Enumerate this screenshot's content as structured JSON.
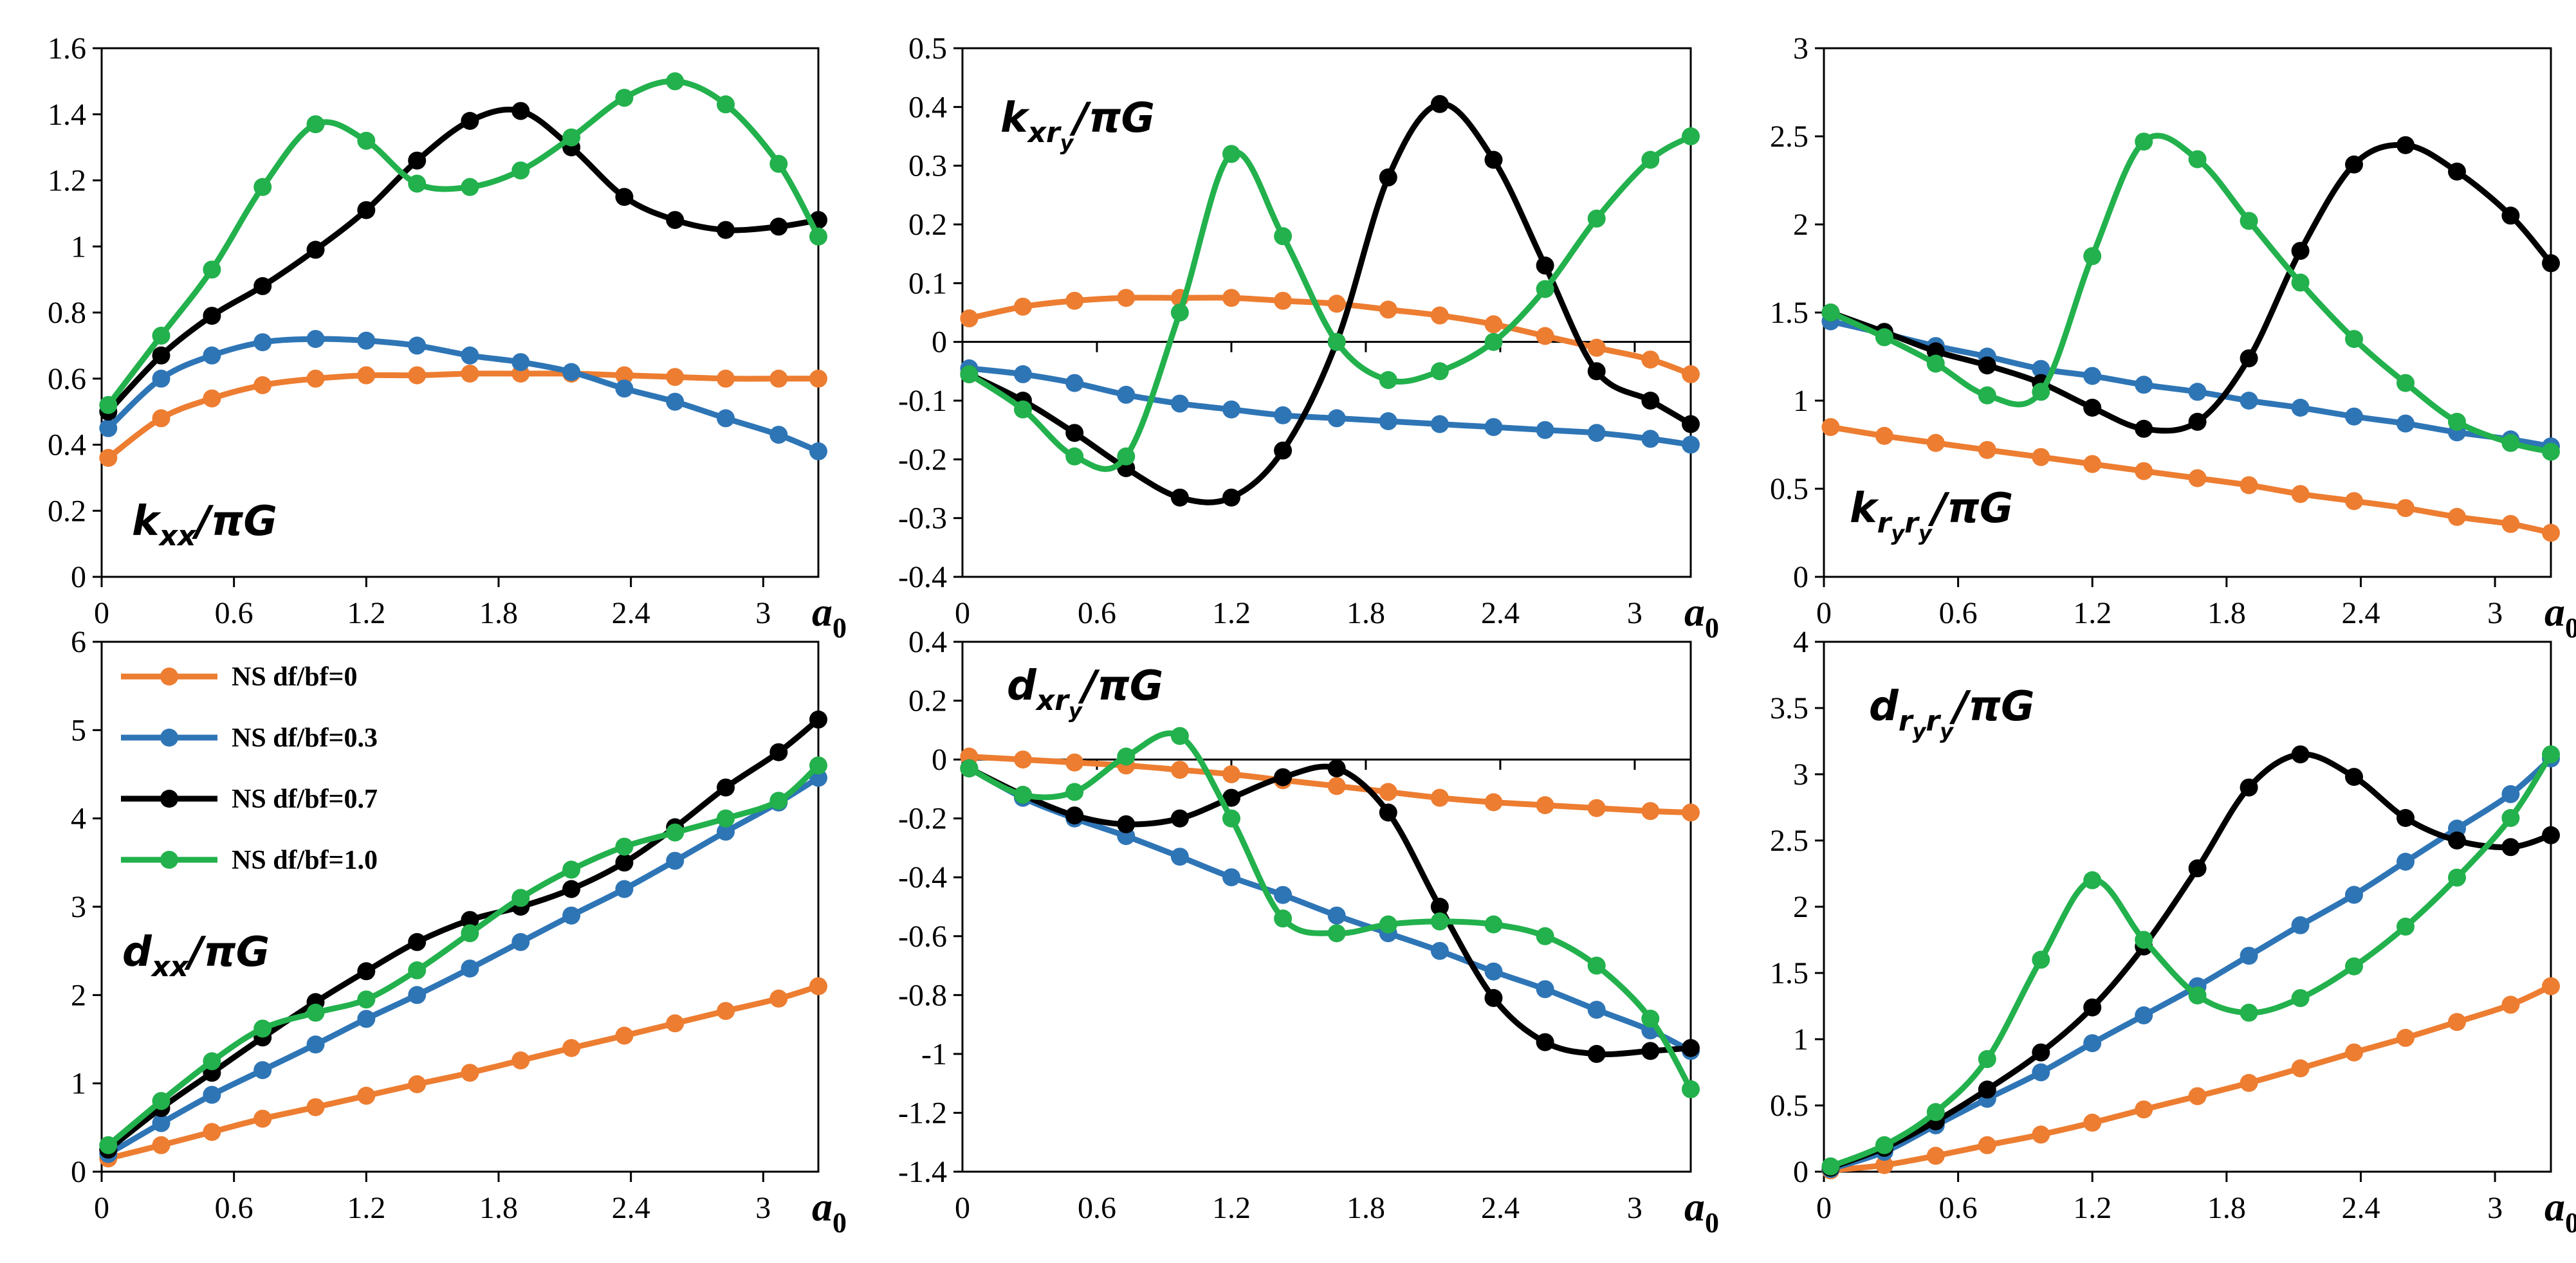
{
  "colors": {
    "NS df/bf=0": "#ED7D31",
    "NS df/bf=0.3": "#2E75B6",
    "NS df/bf=0.7": "#000000",
    "NS df/bf=1.0": "#22B14C"
  },
  "legend": [
    {
      "name": "NS df/bf=0",
      "color_key": "NS df/bf=0"
    },
    {
      "name": "NS df/bf=0.3",
      "color_key": "NS df/bf=0.3"
    },
    {
      "name": "NS df/bf=0.7",
      "color_key": "NS df/bf=0.7"
    },
    {
      "name": "NS df/bf=1.0",
      "color_key": "NS df/bf=1.0"
    }
  ],
  "chart_data": [
    {
      "type": "line",
      "label": {
        "parts": [
          {
            "t": "k",
            "s": 0
          },
          {
            "t": "xx",
            "s": 1
          },
          {
            "t": "/πG",
            "s": 0
          }
        ]
      },
      "xlabel": {
        "main": "a",
        "sub": "0"
      },
      "xlim": [
        0,
        3.25
      ],
      "ylim": [
        0,
        1.6
      ],
      "xticks": [
        0,
        0.6,
        1.2,
        1.8,
        2.4,
        3
      ],
      "xtick_labels": [
        "0",
        "0.6",
        "1.2",
        "1.8",
        "2.4",
        "3"
      ],
      "yticks": [
        0,
        0.2,
        0.4,
        0.6,
        0.8,
        1,
        1.2,
        1.4,
        1.6
      ],
      "ytick_labels": [
        "0",
        "0.2",
        "0.4",
        "0.6",
        "0.8",
        "1",
        "1.2",
        "1.4",
        "1.6"
      ],
      "x": [
        0.03,
        0.27,
        0.5,
        0.73,
        0.97,
        1.2,
        1.43,
        1.67,
        1.9,
        2.13,
        2.37,
        2.6,
        2.83,
        3.07,
        3.25
      ],
      "series": [
        {
          "name": "NS df/bf=0",
          "values": [
            0.36,
            0.48,
            0.54,
            0.58,
            0.6,
            0.61,
            0.61,
            0.615,
            0.615,
            0.615,
            0.61,
            0.605,
            0.6,
            0.6,
            0.6
          ]
        },
        {
          "name": "NS df/bf=0.3",
          "values": [
            0.45,
            0.6,
            0.67,
            0.71,
            0.72,
            0.715,
            0.7,
            0.67,
            0.65,
            0.62,
            0.57,
            0.53,
            0.48,
            0.43,
            0.38
          ]
        },
        {
          "name": "NS df/bf=0.7",
          "values": [
            0.5,
            0.67,
            0.79,
            0.88,
            0.99,
            1.11,
            1.26,
            1.38,
            1.41,
            1.3,
            1.15,
            1.08,
            1.05,
            1.06,
            1.08
          ]
        },
        {
          "name": "NS df/bf=1.0",
          "values": [
            0.52,
            0.73,
            0.93,
            1.18,
            1.37,
            1.32,
            1.19,
            1.18,
            1.23,
            1.33,
            1.45,
            1.5,
            1.43,
            1.25,
            1.03
          ]
        }
      ]
    },
    {
      "type": "line",
      "label": {
        "parts": [
          {
            "t": "k",
            "s": 0
          },
          {
            "t": "xr",
            "s": 1
          },
          {
            "t": "y",
            "s": 2
          },
          {
            "t": "/πG",
            "s": 0
          }
        ]
      },
      "xlabel": {
        "main": "a",
        "sub": "0"
      },
      "xlim": [
        0,
        3.25
      ],
      "ylim": [
        -0.4,
        0.5
      ],
      "xticks": [
        0,
        0.6,
        1.2,
        1.8,
        2.4,
        3
      ],
      "xtick_labels": [
        "0",
        "0.6",
        "1.2",
        "1.8",
        "2.4",
        "3"
      ],
      "yticks": [
        -0.4,
        -0.3,
        -0.2,
        -0.1,
        0,
        0.1,
        0.2,
        0.3,
        0.4,
        0.5
      ],
      "ytick_labels": [
        "-0.4",
        "-0.3",
        "-0.2",
        "-0.1",
        "0",
        "0.1",
        "0.2",
        "0.3",
        "0.4",
        "0.5"
      ],
      "x": [
        0.03,
        0.27,
        0.5,
        0.73,
        0.97,
        1.2,
        1.43,
        1.67,
        1.9,
        2.13,
        2.37,
        2.6,
        2.83,
        3.07,
        3.25
      ],
      "series": [
        {
          "name": "NS df/bf=0",
          "values": [
            0.04,
            0.06,
            0.07,
            0.075,
            0.075,
            0.075,
            0.07,
            0.065,
            0.055,
            0.045,
            0.03,
            0.01,
            -0.01,
            -0.03,
            -0.055
          ]
        },
        {
          "name": "NS df/bf=0.3",
          "values": [
            -0.045,
            -0.055,
            -0.07,
            -0.09,
            -0.105,
            -0.115,
            -0.125,
            -0.13,
            -0.135,
            -0.14,
            -0.145,
            -0.15,
            -0.155,
            -0.165,
            -0.175
          ]
        },
        {
          "name": "NS df/bf=0.7",
          "values": [
            -0.055,
            -0.1,
            -0.155,
            -0.215,
            -0.265,
            -0.265,
            -0.185,
            0.0,
            0.28,
            0.405,
            0.31,
            0.13,
            -0.05,
            -0.1,
            -0.14
          ]
        },
        {
          "name": "NS df/bf=1.0",
          "values": [
            -0.055,
            -0.115,
            -0.195,
            -0.195,
            0.05,
            0.32,
            0.18,
            0.0,
            -0.065,
            -0.05,
            0.0,
            0.09,
            0.21,
            0.31,
            0.35
          ]
        }
      ]
    },
    {
      "type": "line",
      "label": {
        "parts": [
          {
            "t": "k",
            "s": 0
          },
          {
            "t": "r",
            "s": 1
          },
          {
            "t": "y",
            "s": 2
          },
          {
            "t": "r",
            "s": 1
          },
          {
            "t": "y",
            "s": 2
          },
          {
            "t": "/πG",
            "s": 0
          }
        ]
      },
      "xlabel": {
        "main": "a",
        "sub": "0"
      },
      "xlim": [
        0,
        3.25
      ],
      "ylim": [
        0,
        3
      ],
      "xticks": [
        0,
        0.6,
        1.2,
        1.8,
        2.4,
        3
      ],
      "xtick_labels": [
        "0",
        "0.6",
        "1.2",
        "1.8",
        "2.4",
        "3"
      ],
      "yticks": [
        0,
        0.5,
        1,
        1.5,
        2,
        2.5,
        3
      ],
      "ytick_labels": [
        "0",
        "0.5",
        "1",
        "1.5",
        "2",
        "2.5",
        "3"
      ],
      "x": [
        0.03,
        0.27,
        0.5,
        0.73,
        0.97,
        1.2,
        1.43,
        1.67,
        1.9,
        2.13,
        2.37,
        2.6,
        2.83,
        3.07,
        3.25
      ],
      "series": [
        {
          "name": "NS df/bf=0",
          "values": [
            0.85,
            0.8,
            0.76,
            0.72,
            0.68,
            0.64,
            0.6,
            0.56,
            0.52,
            0.47,
            0.43,
            0.39,
            0.34,
            0.3,
            0.25
          ]
        },
        {
          "name": "NS df/bf=0.3",
          "values": [
            1.45,
            1.38,
            1.31,
            1.25,
            1.18,
            1.14,
            1.09,
            1.05,
            1.0,
            0.96,
            0.91,
            0.87,
            0.82,
            0.78,
            0.74
          ]
        },
        {
          "name": "NS df/bf=0.7",
          "values": [
            1.5,
            1.39,
            1.28,
            1.2,
            1.1,
            0.96,
            0.84,
            0.88,
            1.24,
            1.85,
            2.34,
            2.45,
            2.3,
            2.05,
            1.78
          ]
        },
        {
          "name": "NS df/bf=1.0",
          "values": [
            1.5,
            1.36,
            1.21,
            1.03,
            1.05,
            1.82,
            2.47,
            2.37,
            2.02,
            1.67,
            1.35,
            1.1,
            0.88,
            0.76,
            0.71
          ]
        }
      ]
    },
    {
      "type": "line",
      "label": {
        "parts": [
          {
            "t": "d",
            "s": 0
          },
          {
            "t": "xx",
            "s": 1
          },
          {
            "t": "/πG",
            "s": 0
          }
        ]
      },
      "xlabel": {
        "main": "a",
        "sub": "0"
      },
      "xlim": [
        0,
        3.25
      ],
      "ylim": [
        0,
        6
      ],
      "xticks": [
        0,
        0.6,
        1.2,
        1.8,
        2.4,
        3
      ],
      "xtick_labels": [
        "0",
        "0.6",
        "1.2",
        "1.8",
        "2.4",
        "3"
      ],
      "yticks": [
        0,
        1,
        2,
        3,
        4,
        5,
        6
      ],
      "ytick_labels": [
        "0",
        "1",
        "2",
        "3",
        "4",
        "5",
        "6"
      ],
      "x": [
        0.03,
        0.27,
        0.5,
        0.73,
        0.97,
        1.2,
        1.43,
        1.67,
        1.9,
        2.13,
        2.37,
        2.6,
        2.83,
        3.07,
        3.25
      ],
      "series": [
        {
          "name": "NS df/bf=0",
          "values": [
            0.15,
            0.3,
            0.45,
            0.6,
            0.73,
            0.86,
            0.99,
            1.12,
            1.26,
            1.4,
            1.54,
            1.68,
            1.82,
            1.96,
            2.1
          ]
        },
        {
          "name": "NS df/bf=0.3",
          "values": [
            0.2,
            0.55,
            0.87,
            1.15,
            1.44,
            1.73,
            2.0,
            2.3,
            2.6,
            2.9,
            3.2,
            3.52,
            3.85,
            4.18,
            4.46
          ]
        },
        {
          "name": "NS df/bf=0.7",
          "values": [
            0.25,
            0.72,
            1.12,
            1.52,
            1.92,
            2.27,
            2.6,
            2.85,
            3.0,
            3.2,
            3.5,
            3.9,
            4.35,
            4.75,
            5.12
          ]
        },
        {
          "name": "NS df/bf=1.0",
          "values": [
            0.3,
            0.8,
            1.25,
            1.62,
            1.8,
            1.95,
            2.28,
            2.7,
            3.1,
            3.42,
            3.68,
            3.84,
            4.0,
            4.2,
            4.6
          ]
        }
      ]
    },
    {
      "type": "line",
      "label": {
        "parts": [
          {
            "t": "d",
            "s": 0
          },
          {
            "t": "xr",
            "s": 1
          },
          {
            "t": "y",
            "s": 2
          },
          {
            "t": "/πG",
            "s": 0
          }
        ]
      },
      "xlabel": {
        "main": "a",
        "sub": "0"
      },
      "xlim": [
        0,
        3.25
      ],
      "ylim": [
        -1.4,
        0.4
      ],
      "xticks": [
        0,
        0.6,
        1.2,
        1.8,
        2.4,
        3
      ],
      "xtick_labels": [
        "0",
        "0.6",
        "1.2",
        "1.8",
        "2.4",
        "3"
      ],
      "yticks": [
        -1.4,
        -1.2,
        -1,
        -0.8,
        -0.6,
        -0.4,
        -0.2,
        0,
        0.2,
        0.4
      ],
      "ytick_labels": [
        "-1.4",
        "-1.2",
        "-1",
        "-0.8",
        "-0.6",
        "-0.4",
        "-0.2",
        "0",
        "0.2",
        "0.4"
      ],
      "x": [
        0.03,
        0.27,
        0.5,
        0.73,
        0.97,
        1.2,
        1.43,
        1.67,
        1.9,
        2.13,
        2.37,
        2.6,
        2.83,
        3.07,
        3.25
      ],
      "series": [
        {
          "name": "NS df/bf=0",
          "values": [
            0.01,
            0.0,
            -0.01,
            -0.02,
            -0.035,
            -0.05,
            -0.07,
            -0.09,
            -0.11,
            -0.13,
            -0.145,
            -0.155,
            -0.165,
            -0.175,
            -0.18
          ]
        },
        {
          "name": "NS df/bf=0.3",
          "values": [
            -0.03,
            -0.13,
            -0.2,
            -0.26,
            -0.33,
            -0.4,
            -0.46,
            -0.53,
            -0.59,
            -0.65,
            -0.72,
            -0.78,
            -0.85,
            -0.92,
            -0.99
          ]
        },
        {
          "name": "NS df/bf=0.7",
          "values": [
            -0.03,
            -0.12,
            -0.19,
            -0.22,
            -0.2,
            -0.13,
            -0.06,
            -0.03,
            -0.18,
            -0.5,
            -0.81,
            -0.96,
            -1.0,
            -0.99,
            -0.98
          ]
        },
        {
          "name": "NS df/bf=1.0",
          "values": [
            -0.03,
            -0.12,
            -0.11,
            0.01,
            0.08,
            -0.2,
            -0.54,
            -0.59,
            -0.56,
            -0.55,
            -0.56,
            -0.6,
            -0.7,
            -0.88,
            -1.12
          ]
        }
      ]
    },
    {
      "type": "line",
      "label": {
        "parts": [
          {
            "t": "d",
            "s": 0
          },
          {
            "t": "r",
            "s": 1
          },
          {
            "t": "y",
            "s": 2
          },
          {
            "t": "r",
            "s": 1
          },
          {
            "t": "y",
            "s": 2
          },
          {
            "t": "/πG",
            "s": 0
          }
        ]
      },
      "xlabel": {
        "main": "a",
        "sub": "0"
      },
      "xlim": [
        0,
        3.25
      ],
      "ylim": [
        0,
        4
      ],
      "xticks": [
        0,
        0.6,
        1.2,
        1.8,
        2.4,
        3
      ],
      "xtick_labels": [
        "0",
        "0.6",
        "1.2",
        "1.8",
        "2.4",
        "3"
      ],
      "yticks": [
        0,
        0.5,
        1,
        1.5,
        2,
        2.5,
        3,
        3.5,
        4
      ],
      "ytick_labels": [
        "0",
        "0.5",
        "1",
        "1.5",
        "2",
        "2.5",
        "3",
        "3.5",
        "4"
      ],
      "x": [
        0.03,
        0.27,
        0.5,
        0.73,
        0.97,
        1.2,
        1.43,
        1.67,
        1.9,
        2.13,
        2.37,
        2.6,
        2.83,
        3.07,
        3.25
      ],
      "series": [
        {
          "name": "NS df/bf=0",
          "values": [
            0.01,
            0.05,
            0.12,
            0.2,
            0.28,
            0.37,
            0.47,
            0.57,
            0.67,
            0.78,
            0.9,
            1.01,
            1.13,
            1.26,
            1.4
          ]
        },
        {
          "name": "NS df/bf=0.3",
          "values": [
            0.02,
            0.15,
            0.35,
            0.55,
            0.75,
            0.97,
            1.18,
            1.4,
            1.63,
            1.86,
            2.09,
            2.34,
            2.59,
            2.85,
            3.12
          ]
        },
        {
          "name": "NS df/bf=0.7",
          "values": [
            0.03,
            0.18,
            0.38,
            0.62,
            0.9,
            1.24,
            1.7,
            2.29,
            2.9,
            3.15,
            2.98,
            2.67,
            2.5,
            2.45,
            2.54
          ]
        },
        {
          "name": "NS df/bf=1.0",
          "values": [
            0.04,
            0.2,
            0.45,
            0.85,
            1.6,
            2.2,
            1.75,
            1.33,
            1.2,
            1.31,
            1.55,
            1.85,
            2.22,
            2.67,
            3.15
          ]
        }
      ]
    }
  ]
}
